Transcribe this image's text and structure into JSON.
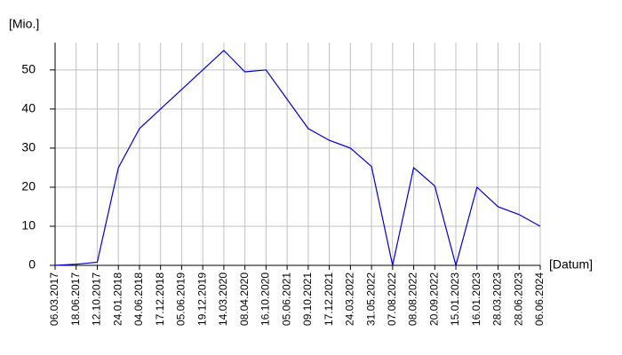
{
  "chart_data": {
    "type": "line",
    "y_label": "[Mio.]",
    "x_label": "[Datum]",
    "categories": [
      "06.03.2017",
      "18.06.2017",
      "12.10.2017",
      "24.01.2018",
      "04.06.2018",
      "17.12.2018",
      "05.06.2019",
      "19.12.2019",
      "14.03.2020",
      "08.04.2020",
      "16.10.2020",
      "05.06.2021",
      "09.10.2021",
      "17.12.2021",
      "24.03.2022",
      "31.05.2022",
      "07.08.2022",
      "08.08.2022",
      "20.09.2022",
      "15.01.2023",
      "16.01.2023",
      "28.03.2023",
      "28.06.2023",
      "06.06.2024"
    ],
    "values": [
      0,
      0.3,
      0.8,
      25,
      35,
      40,
      45,
      50,
      55,
      49.5,
      50,
      42.5,
      35,
      32,
      30,
      25.3,
      0,
      25,
      20.3,
      0,
      20,
      15,
      13,
      10
    ],
    "color": "#0000cc",
    "ylim": [
      0,
      57
    ],
    "yticks": [
      0,
      10,
      20,
      30,
      40,
      50
    ],
    "grid": true
  }
}
